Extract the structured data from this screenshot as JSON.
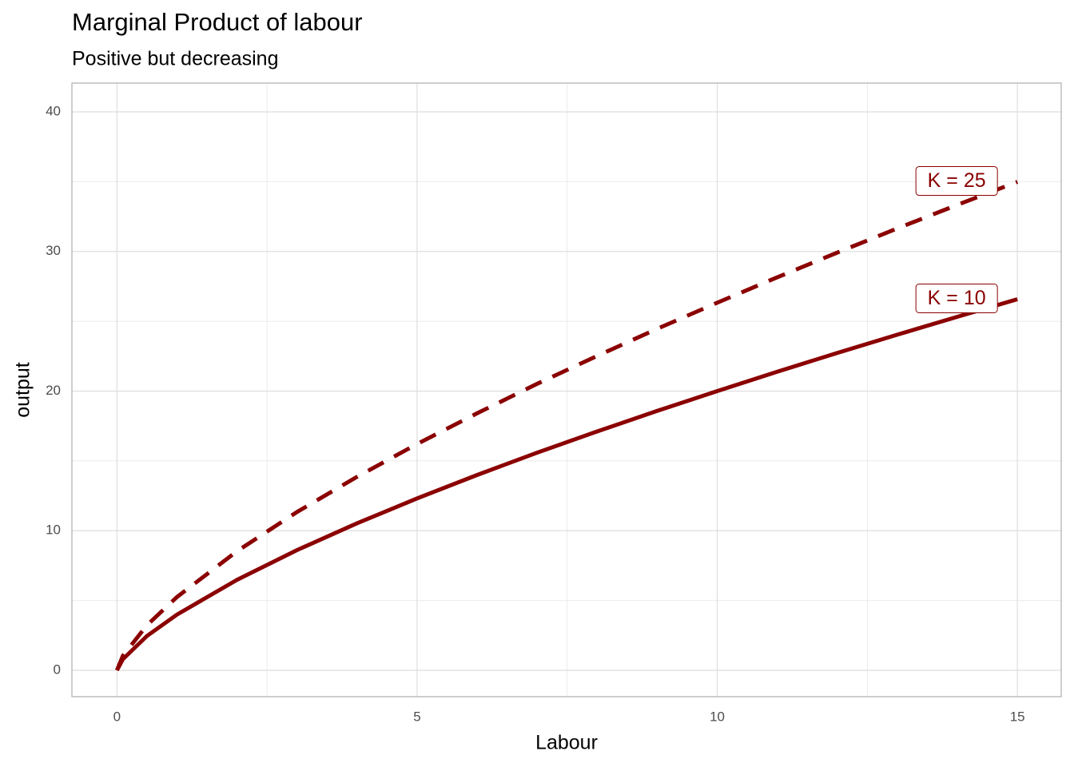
{
  "chart_data": {
    "type": "line",
    "title": "Marginal Product of labour",
    "subtitle": "Positive but decreasing",
    "x_label": "Labour",
    "y_label": "output",
    "x": [
      0,
      0.1,
      0.5,
      1,
      2,
      3,
      4,
      5,
      6,
      7,
      8,
      9,
      10,
      11,
      12,
      13,
      14,
      15
    ],
    "series": [
      {
        "name": "K = 10",
        "color": "#8b0000",
        "dash": false,
        "values": [
          0,
          0.8,
          2.46,
          3.99,
          6.48,
          8.61,
          10.53,
          12.31,
          13.99,
          15.59,
          17.11,
          18.58,
          20.0,
          21.39,
          22.73,
          24.04,
          25.32,
          26.58
        ]
      },
      {
        "name": "K = 25",
        "color": "#8b0000",
        "dash": true,
        "values": [
          0,
          1.05,
          3.23,
          5.25,
          8.53,
          11.34,
          13.86,
          16.21,
          18.41,
          20.52,
          22.52,
          24.46,
          26.33,
          28.15,
          29.92,
          31.65,
          33.34,
          34.99
        ]
      }
    ],
    "xlim": [
      -0.75,
      15.73
    ],
    "ylim": [
      -1.89,
      42.06
    ],
    "xticks": [
      0,
      5,
      10,
      15
    ],
    "yticks": [
      0,
      10,
      20,
      30,
      40
    ],
    "x_minor_ticks": [
      2.5,
      7.5,
      12.5
    ],
    "y_minor_ticks": [
      5,
      15,
      25,
      35
    ],
    "grid": true
  }
}
